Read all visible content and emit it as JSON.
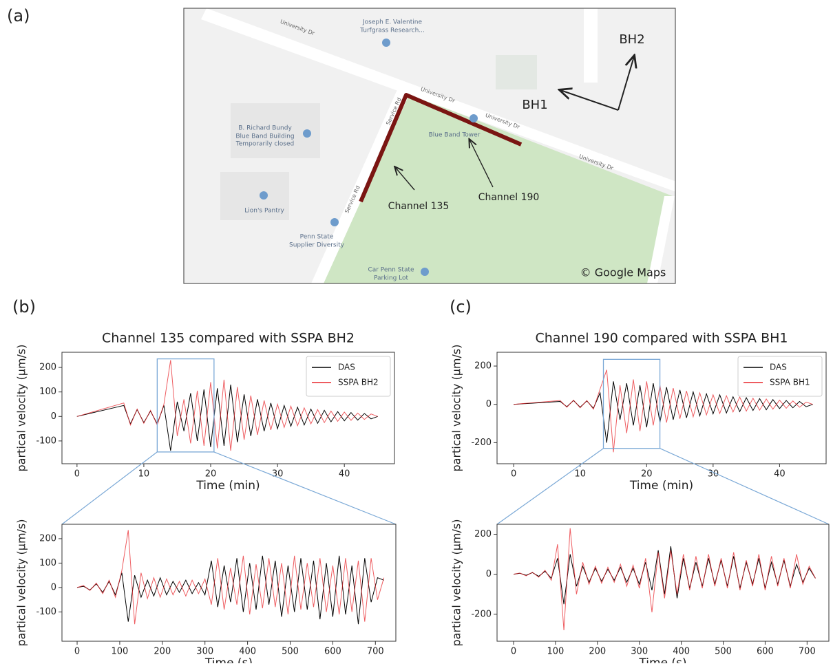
{
  "panel_labels": [
    "(a)",
    "(b)",
    "(c)"
  ],
  "map": {
    "place_1": [
      "Joseph E. Valentine",
      "Turfgrass Research..."
    ],
    "place_2": [
      "B. Richard Bundy",
      "Blue Band Building"
    ],
    "place_2_note": "Temporarily closed",
    "place_3": "Blue Band Tower",
    "place_4": "Lion's Pantry",
    "place_5": [
      "Penn State",
      "Supplier Diversity"
    ],
    "place_6": [
      "Car Penn State",
      "Parking Lot"
    ],
    "road_1": "University Dr",
    "road_2": "Service Rd",
    "bh2": "BH2",
    "bh1": "BH1",
    "channel_135": "Channel 135",
    "channel_190": "Channel 190",
    "credit": "© Google Maps"
  },
  "chart_data": [
    {
      "type": "line",
      "title": "Channel 135 compared with SSPA BH2",
      "x_label": "Time (min)",
      "y_label": "partical velocity (μm/s)",
      "xlim": [
        -2.25,
        47.5
      ],
      "ylim": [
        -193,
        262
      ],
      "xticks": [
        0,
        10,
        20,
        30,
        40
      ],
      "yticks": [
        -100,
        0,
        100,
        200
      ],
      "legend": "upper right",
      "zoom_box": {
        "x": [
          12,
          20.5
        ],
        "y": [
          -145,
          235
        ],
        "color": "#7aa8d6"
      },
      "x": [
        0,
        7,
        8,
        9,
        10,
        11,
        12,
        13,
        14,
        15,
        16,
        17,
        18,
        19,
        20,
        21,
        22,
        23,
        24,
        25,
        26,
        27,
        28,
        29,
        30,
        31,
        32,
        33,
        34,
        35,
        36,
        37,
        38,
        39,
        40,
        41,
        42,
        43,
        44,
        45
      ],
      "series": [
        {
          "name": "DAS",
          "color": "#000000",
          "values": [
            0,
            45,
            -30,
            28,
            -25,
            22,
            -30,
            45,
            -140,
            60,
            -60,
            95,
            -100,
            110,
            -125,
            115,
            -120,
            130,
            -105,
            90,
            -80,
            70,
            -60,
            55,
            -50,
            45,
            -40,
            38,
            -35,
            30,
            -28,
            25,
            -22,
            20,
            -18,
            16,
            -15,
            12,
            -10,
            0
          ]
        },
        {
          "name": "SSPA BH2",
          "color": "#e8262b",
          "values": [
            0,
            55,
            -35,
            30,
            -28,
            25,
            -35,
            50,
            230,
            -80,
            70,
            -110,
            105,
            -120,
            140,
            -130,
            150,
            -140,
            120,
            -95,
            85,
            -75,
            65,
            -55,
            50,
            -45,
            42,
            -38,
            35,
            -30,
            28,
            -25,
            22,
            -20,
            18,
            -16,
            14,
            -12,
            10,
            0
          ]
        }
      ]
    },
    {
      "type": "line",
      "title": "Channel 190 compared with SSPA BH1",
      "x_label": "Time (min)",
      "y_label": "partical velocity (μm/s)",
      "xlim": [
        -2.5,
        47
      ],
      "ylim": [
        -310,
        272
      ],
      "xticks": [
        0,
        10,
        20,
        30,
        40
      ],
      "yticks": [
        -200,
        0,
        200
      ],
      "legend": "upper right",
      "zoom_box": {
        "x": [
          13.5,
          22
        ],
        "y": [
          -230,
          235
        ],
        "color": "#7aa8d6"
      },
      "x": [
        0,
        7,
        8,
        9,
        10,
        11,
        12,
        13,
        14,
        15,
        16,
        17,
        18,
        19,
        20,
        21,
        22,
        23,
        24,
        25,
        26,
        27,
        28,
        29,
        30,
        31,
        32,
        33,
        34,
        35,
        36,
        37,
        38,
        39,
        40,
        41,
        42,
        43,
        44,
        45
      ],
      "series": [
        {
          "name": "DAS",
          "color": "#000000",
          "values": [
            0,
            15,
            -12,
            20,
            -15,
            18,
            -20,
            60,
            -200,
            120,
            -80,
            110,
            -110,
            100,
            -120,
            110,
            -95,
            90,
            -80,
            75,
            -70,
            65,
            -60,
            55,
            -50,
            50,
            -45,
            40,
            -38,
            35,
            -32,
            30,
            -28,
            25,
            -22,
            20,
            -18,
            15,
            -12,
            0
          ]
        },
        {
          "name": "SSPA BH1",
          "color": "#e8262b",
          "values": [
            0,
            20,
            -15,
            22,
            -18,
            20,
            -25,
            80,
            180,
            -250,
            100,
            -150,
            130,
            -140,
            120,
            -110,
            100,
            -95,
            85,
            -75,
            70,
            -65,
            60,
            -55,
            50,
            -48,
            45,
            -40,
            38,
            -35,
            32,
            -30,
            28,
            -25,
            22,
            -20,
            18,
            -15,
            12,
            0
          ]
        }
      ]
    },
    {
      "type": "line",
      "x_label": "Time (s)",
      "y_label": "partical velocity (μm/s)",
      "xlim": [
        -35.6,
        748
      ],
      "ylim": [
        -220,
        259
      ],
      "xticks": [
        0,
        100,
        200,
        300,
        400,
        500,
        600,
        700
      ],
      "yticks": [
        -100,
        0,
        100,
        200
      ],
      "x": [
        0,
        15,
        30,
        45,
        60,
        75,
        90,
        105,
        120,
        135,
        150,
        165,
        180,
        195,
        210,
        225,
        240,
        255,
        270,
        285,
        300,
        315,
        330,
        345,
        360,
        375,
        390,
        405,
        420,
        435,
        450,
        465,
        480,
        495,
        510,
        525,
        540,
        555,
        570,
        585,
        600,
        615,
        630,
        645,
        660,
        675,
        690,
        705,
        720
      ],
      "series": [
        {
          "color": "#000000",
          "values": [
            0,
            5,
            -10,
            15,
            -20,
            25,
            -30,
            60,
            -140,
            50,
            -40,
            30,
            -35,
            40,
            -30,
            25,
            -20,
            30,
            -25,
            20,
            -30,
            110,
            -80,
            90,
            -60,
            120,
            -100,
            100,
            -90,
            130,
            -70,
            110,
            -120,
            90,
            -100,
            120,
            -90,
            110,
            -130,
            100,
            -120,
            130,
            -110,
            90,
            -150,
            120,
            -60,
            40,
            30
          ]
        },
        {
          "color": "#e8262b",
          "values": [
            0,
            8,
            -12,
            18,
            -25,
            30,
            -40,
            70,
            235,
            -150,
            60,
            -45,
            40,
            -40,
            35,
            -30,
            25,
            -35,
            30,
            -25,
            35,
            -70,
            120,
            -90,
            80,
            -70,
            130,
            -110,
            95,
            -85,
            120,
            -80,
            100,
            -110,
            130,
            -90,
            100,
            -80,
            120,
            -100,
            90,
            -110,
            120,
            -100,
            110,
            -140,
            120,
            -50,
            40
          ]
        }
      ]
    },
    {
      "type": "line",
      "x_label": "Time (s)",
      "y_label": "partical velocity (μm/s)",
      "xlim": [
        -39.4,
        752
      ],
      "ylim": [
        -335,
        250
      ],
      "xticks": [
        0,
        100,
        200,
        300,
        400,
        500,
        600,
        700
      ],
      "yticks": [
        -200,
        0,
        200
      ],
      "x": [
        0,
        15,
        30,
        45,
        60,
        75,
        90,
        105,
        120,
        135,
        150,
        165,
        180,
        195,
        210,
        225,
        240,
        255,
        270,
        285,
        300,
        315,
        330,
        345,
        360,
        375,
        390,
        405,
        420,
        435,
        450,
        465,
        480,
        495,
        510,
        525,
        540,
        555,
        570,
        585,
        600,
        615,
        630,
        645,
        660,
        675,
        690,
        705,
        720
      ],
      "series": [
        {
          "color": "#000000",
          "values": [
            0,
            5,
            -5,
            8,
            -10,
            15,
            -20,
            80,
            -150,
            100,
            -60,
            40,
            -40,
            30,
            -35,
            25,
            -30,
            35,
            -40,
            30,
            -50,
            60,
            -80,
            120,
            -100,
            140,
            -120,
            80,
            -70,
            60,
            -60,
            80,
            -50,
            70,
            -60,
            90,
            -70,
            60,
            -50,
            80,
            -70,
            60,
            -50,
            70,
            -60,
            50,
            -40,
            30,
            -20
          ]
        },
        {
          "color": "#e8262b",
          "values": [
            0,
            6,
            -8,
            10,
            -15,
            20,
            -30,
            150,
            -280,
            230,
            -100,
            60,
            -50,
            40,
            -45,
            35,
            -40,
            50,
            -60,
            45,
            -70,
            80,
            -190,
            110,
            -120,
            120,
            -100,
            100,
            -80,
            90,
            -70,
            100,
            -60,
            80,
            -70,
            110,
            -80,
            70,
            -60,
            100,
            -80,
            90,
            -60,
            80,
            -70,
            100,
            -50,
            40,
            -20
          ]
        }
      ]
    }
  ]
}
